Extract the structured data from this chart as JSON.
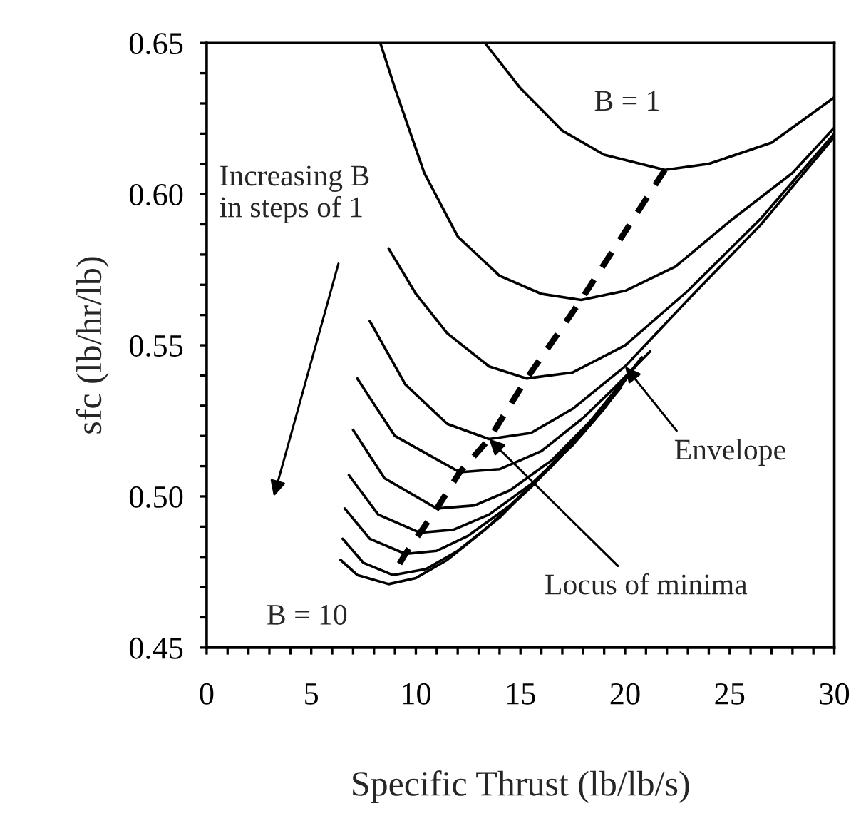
{
  "chart_data": {
    "type": "line",
    "xlabel": "Specific Thrust (lb/lb/s)",
    "ylabel": "sfc (lb/hr/lb)",
    "xlim": [
      0,
      30
    ],
    "ylim": [
      0.45,
      0.65
    ],
    "xticks": [
      0,
      {
        "value": 1,
        "label": null
      },
      {
        "value": 2,
        "label": null
      },
      {
        "value": 3,
        "label": null
      },
      {
        "value": 4,
        "label": null
      },
      5,
      {
        "value": 6,
        "label": null
      },
      {
        "value": 7,
        "label": null
      },
      {
        "value": 8,
        "label": null
      },
      {
        "value": 9,
        "label": null
      },
      10,
      {
        "value": 11,
        "label": null
      },
      {
        "value": 12,
        "label": null
      },
      {
        "value": 13,
        "label": null
      },
      {
        "value": 14,
        "label": null
      },
      15,
      {
        "value": 16,
        "label": null
      },
      {
        "value": 17,
        "label": null
      },
      {
        "value": 18,
        "label": null
      },
      {
        "value": 19,
        "label": null
      },
      20,
      {
        "value": 21,
        "label": null
      },
      {
        "value": 22,
        "label": null
      },
      {
        "value": 23,
        "label": null
      },
      {
        "value": 24,
        "label": null
      },
      25,
      {
        "value": 26,
        "label": null
      },
      {
        "value": 27,
        "label": null
      },
      {
        "value": 28,
        "label": null
      },
      {
        "value": 29,
        "label": null
      },
      30
    ],
    "yticks": [
      {
        "value": 0.45,
        "label": "0.45"
      },
      {
        "value": 0.46,
        "label": null
      },
      {
        "value": 0.47,
        "label": null
      },
      {
        "value": 0.48,
        "label": null
      },
      {
        "value": 0.49,
        "label": null
      },
      {
        "value": 0.5,
        "label": "0.50"
      },
      {
        "value": 0.51,
        "label": null
      },
      {
        "value": 0.52,
        "label": null
      },
      {
        "value": 0.53,
        "label": null
      },
      {
        "value": 0.54,
        "label": null
      },
      {
        "value": 0.55,
        "label": "0.55"
      },
      {
        "value": 0.56,
        "label": null
      },
      {
        "value": 0.57,
        "label": null
      },
      {
        "value": 0.58,
        "label": null
      },
      {
        "value": 0.59,
        "label": null
      },
      {
        "value": 0.6,
        "label": "0.60"
      },
      {
        "value": 0.61,
        "label": null
      },
      {
        "value": 0.62,
        "label": null
      },
      {
        "value": 0.63,
        "label": null
      },
      {
        "value": 0.64,
        "label": null
      },
      {
        "value": 0.65,
        "label": "0.65"
      }
    ],
    "grid": false,
    "legend": false,
    "series": [
      {
        "color": "#000000",
        "x": [
          13.3,
          15,
          17,
          19,
          21.9,
          24,
          27,
          30
        ],
        "values": [
          0.65,
          0.635,
          0.621,
          0.613,
          0.608,
          0.61,
          0.617,
          0.632
        ]
      },
      {
        "color": "#000000",
        "x": [
          8.3,
          9,
          10.4,
          12,
          14,
          16,
          17.9,
          20,
          22.4,
          25,
          28,
          30
        ],
        "values": [
          0.65,
          0.635,
          0.607,
          0.586,
          0.573,
          0.567,
          0.565,
          0.568,
          0.576,
          0.591,
          0.607,
          0.622
        ]
      },
      {
        "color": "#000000",
        "x": [
          8.7,
          10,
          11.5,
          13.5,
          15.3,
          17.5,
          20,
          23,
          26.5,
          30
        ],
        "values": [
          0.582,
          0.567,
          0.554,
          0.543,
          0.539,
          0.541,
          0.55,
          0.568,
          0.592,
          0.62
        ]
      },
      {
        "color": "#000000",
        "x": [
          7.8,
          9.5,
          11.5,
          13.5,
          15.5,
          17.5,
          20,
          23,
          26.5,
          30
        ],
        "values": [
          0.558,
          0.537,
          0.524,
          0.519,
          0.521,
          0.529,
          0.543,
          0.565,
          0.59,
          0.619
        ]
      },
      {
        "color": "#000000",
        "x": [
          7.2,
          9,
          12.1,
          14,
          16,
          18,
          19.5,
          21.2
        ],
        "values": [
          0.539,
          0.52,
          0.508,
          0.509,
          0.515,
          0.526,
          0.536,
          0.548
        ]
      },
      {
        "color": "#000000",
        "x": [
          7.0,
          8.5,
          11.0,
          12.8,
          14.5,
          16.5,
          18.5,
          20.8
        ],
        "values": [
          0.522,
          0.506,
          0.496,
          0.497,
          0.502,
          0.512,
          0.526,
          0.546
        ]
      },
      {
        "color": "#000000",
        "x": [
          6.8,
          8.2,
          10.2,
          11.8,
          13.5,
          15.5,
          17.5,
          19,
          20.5
        ],
        "values": [
          0.507,
          0.494,
          0.488,
          0.489,
          0.494,
          0.504,
          0.517,
          0.529,
          0.543
        ]
      },
      {
        "color": "#000000",
        "x": [
          6.6,
          7.8,
          9.5,
          11,
          12.5,
          14.5,
          16.5,
          18.5,
          20.2
        ],
        "values": [
          0.496,
          0.486,
          0.481,
          0.482,
          0.487,
          0.497,
          0.51,
          0.525,
          0.541
        ]
      },
      {
        "color": "#000000",
        "x": [
          6.5,
          7.5,
          8.9,
          10.5,
          12,
          14,
          16,
          18,
          20.0
        ],
        "values": [
          0.486,
          0.478,
          0.474,
          0.476,
          0.482,
          0.493,
          0.507,
          0.522,
          0.539
        ]
      },
      {
        "color": "#000000",
        "x": [
          6.4,
          7.2,
          8.7,
          10,
          11.5,
          13.3,
          15.5,
          18,
          19.8
        ],
        "values": [
          0.479,
          0.474,
          0.471,
          0.473,
          0.479,
          0.489,
          0.503,
          0.521,
          0.536
        ]
      },
      {
        "color": "#000000",
        "line_style": "dashed",
        "x": [
          21.9,
          17.9,
          15.3,
          13.5,
          12.1,
          11.0,
          10.2,
          9.5,
          8.9
        ],
        "values": [
          0.608,
          0.565,
          0.539,
          0.519,
          0.508,
          0.496,
          0.488,
          0.481,
          0.474
        ]
      }
    ],
    "annotations": [
      "B = 1",
      "Increasing B\nin steps of 1",
      "B = 10",
      {
        "text": "Envelope",
        "x": 20,
        "y": 0.543
      },
      {
        "text": "Locus of minima",
        "x": 13.5,
        "y": 0.519
      }
    ]
  }
}
